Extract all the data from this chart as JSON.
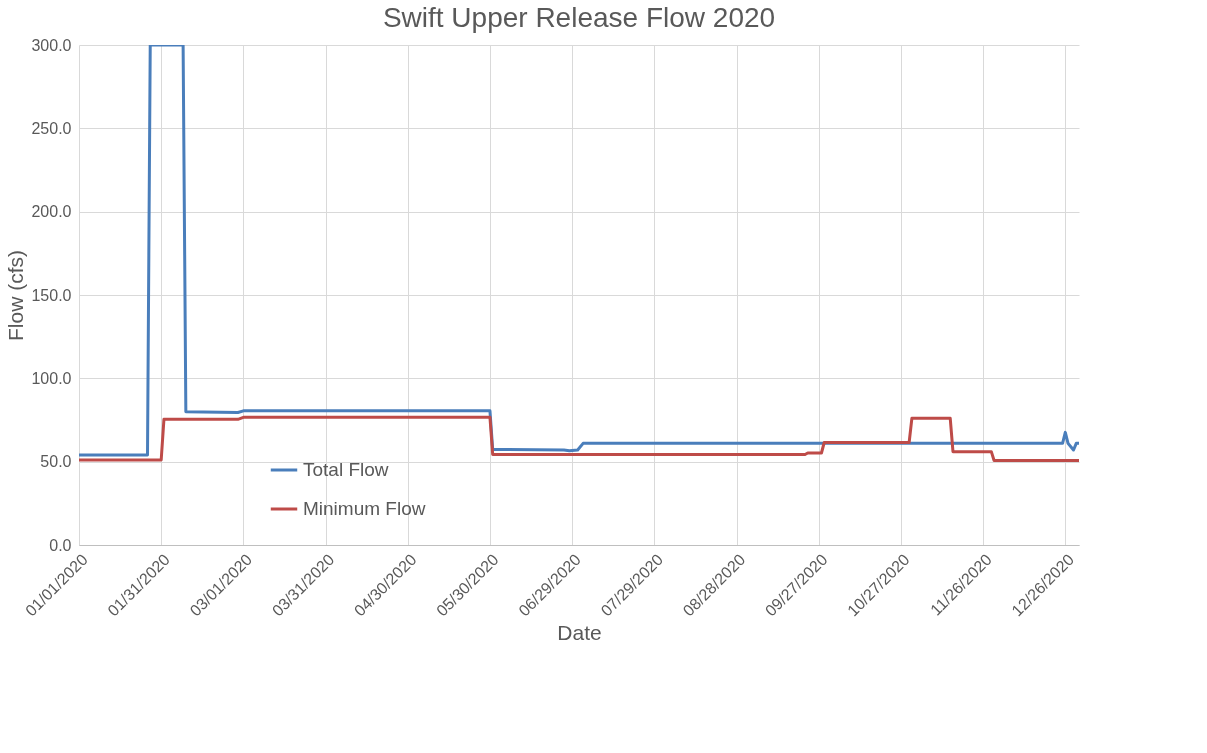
{
  "chart_data": {
    "type": "line",
    "title": "Swift Upper Release Flow 2020",
    "xlabel": "Date",
    "ylabel": "Flow (cfs)",
    "series": [
      {
        "name": "Total Flow",
        "color": "#4a7ebb",
        "x": [
          "2020-01-01",
          "2020-01-26",
          "2020-01-27",
          "2020-02-08",
          "2020-02-09",
          "2020-02-28",
          "2020-03-01",
          "2020-05-30",
          "2020-05-31",
          "2020-06-26",
          "2020-06-28",
          "2020-07-01",
          "2020-07-03",
          "2020-12-25",
          "2020-12-26",
          "2020-12-27",
          "2020-12-29",
          "2020-12-30",
          "2020-12-31"
        ],
        "values": [
          54,
          54,
          300,
          300,
          80,
          79.5,
          80.5,
          80.5,
          57.3,
          57,
          56.5,
          57,
          61,
          61,
          67.6,
          61,
          57,
          61,
          61
        ]
      },
      {
        "name": "Minimum Flow",
        "color": "#be4b48",
        "x": [
          "2020-01-01",
          "2020-01-31",
          "2020-02-01",
          "2020-02-28",
          "2020-03-01",
          "2020-05-30",
          "2020-05-31",
          "2020-09-22",
          "2020-09-23",
          "2020-09-28",
          "2020-09-29",
          "2020-10-30",
          "2020-10-31",
          "2020-11-14",
          "2020-11-15",
          "2020-11-29",
          "2020-11-30",
          "2020-12-31"
        ],
        "values": [
          51,
          51,
          75.4,
          75.4,
          76.6,
          76.6,
          54.3,
          54.3,
          55.2,
          55.2,
          61.5,
          61.5,
          76,
          76,
          56,
          56,
          50.7,
          50.7
        ]
      }
    ],
    "xlim": [
      "2020-01-01",
      "2020-12-31"
    ],
    "xticks": [
      {
        "value": "2020-01-01",
        "label": "01/01/2020"
      },
      {
        "value": "2020-01-31",
        "label": "01/31/2020"
      },
      {
        "value": "2020-03-01",
        "label": "03/01/2020"
      },
      {
        "value": "2020-03-31",
        "label": "03/31/2020"
      },
      {
        "value": "2020-04-30",
        "label": "04/30/2020"
      },
      {
        "value": "2020-05-30",
        "label": "05/30/2020"
      },
      {
        "value": "2020-06-29",
        "label": "06/29/2020"
      },
      {
        "value": "2020-07-29",
        "label": "07/29/2020"
      },
      {
        "value": "2020-08-28",
        "label": "08/28/2020"
      },
      {
        "value": "2020-09-27",
        "label": "09/27/2020"
      },
      {
        "value": "2020-10-27",
        "label": "10/27/2020"
      },
      {
        "value": "2020-11-26",
        "label": "11/26/2020"
      },
      {
        "value": "2020-12-26",
        "label": "12/26/2020"
      }
    ],
    "ylim": [
      0,
      300
    ],
    "yticks": [
      {
        "value": 0,
        "label": "0.0"
      },
      {
        "value": 50,
        "label": "50.0"
      },
      {
        "value": 100,
        "label": "100.0"
      },
      {
        "value": 150,
        "label": "150.0"
      },
      {
        "value": 200,
        "label": "200.0"
      },
      {
        "value": 250,
        "label": "250.0"
      },
      {
        "value": 300,
        "label": "300.0"
      }
    ],
    "grid": true,
    "legend": "bottom",
    "marker": "none",
    "line_style": "solid"
  }
}
